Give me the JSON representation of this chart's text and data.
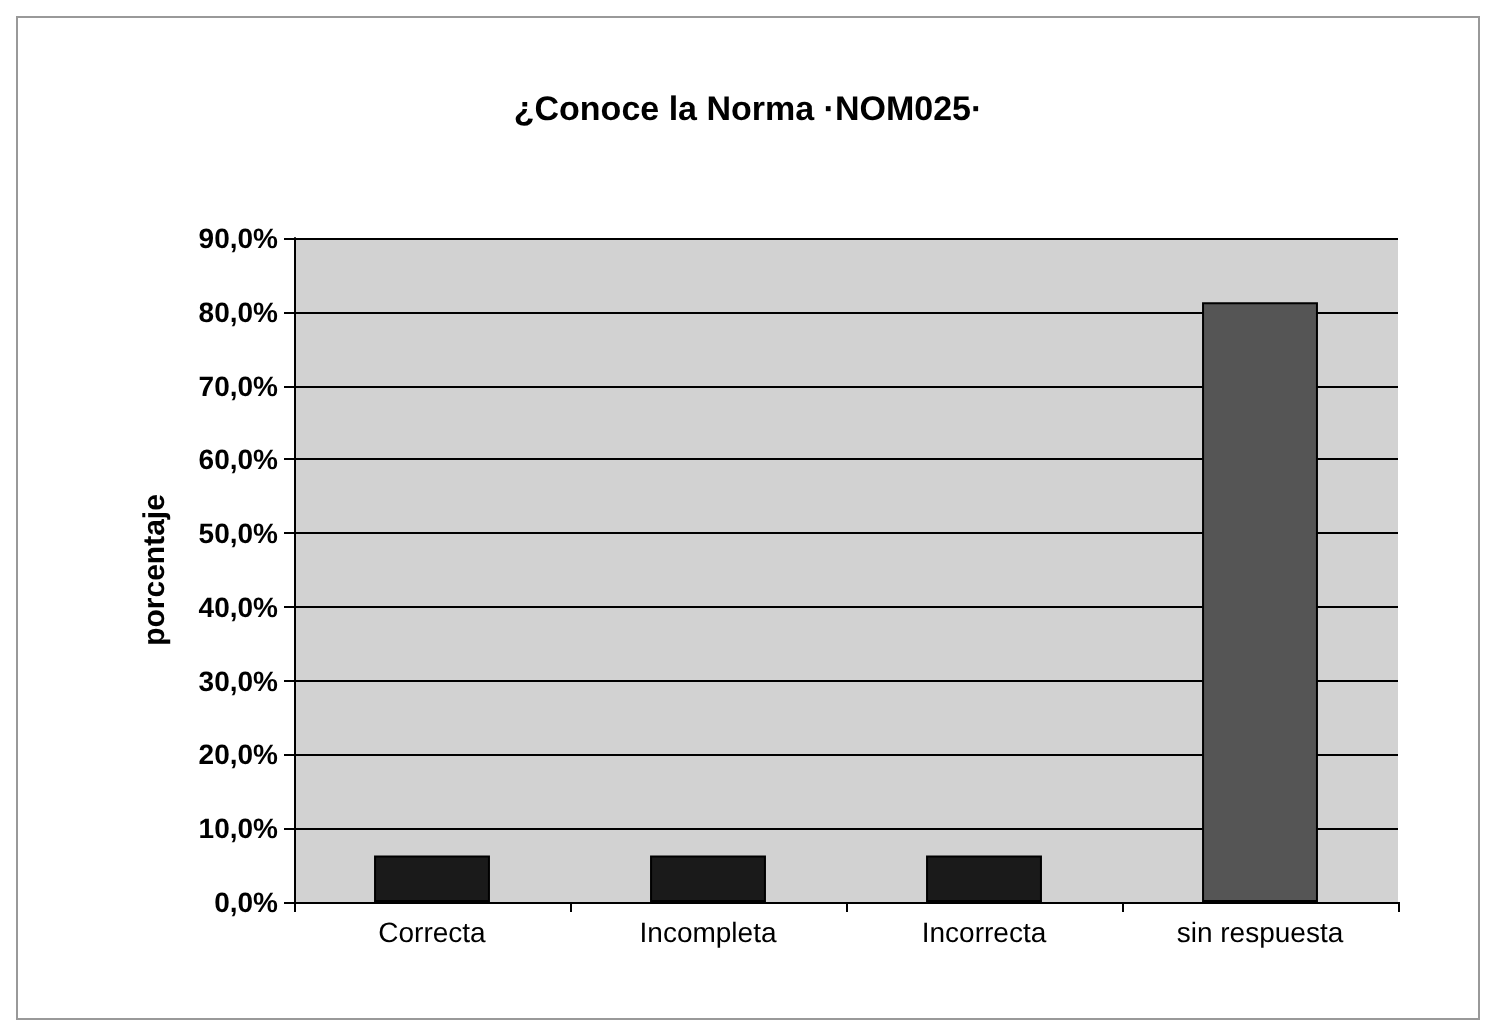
{
  "chart_data": {
    "type": "bar",
    "title": "¿Conoce la Norma ·NOM025·",
    "ylabel": "porcentaje",
    "categories": [
      "Correcta",
      "Incompleta",
      "Incorrecta",
      "sin respuesta"
    ],
    "values": [
      6.3,
      6.3,
      6.3,
      81.3
    ],
    "colors": [
      "#1a1a1a",
      "#1a1a1a",
      "#1a1a1a",
      "#555555"
    ],
    "ylim": [
      0,
      90
    ],
    "yticks": [
      {
        "value": 0,
        "label": "0,0%"
      },
      {
        "value": 10,
        "label": "10,0%"
      },
      {
        "value": 20,
        "label": "20,0%"
      },
      {
        "value": 30,
        "label": "30,0%"
      },
      {
        "value": 40,
        "label": "40,0%"
      },
      {
        "value": 50,
        "label": "50,0%"
      },
      {
        "value": 60,
        "label": "60,0%"
      },
      {
        "value": 70,
        "label": "70,0%"
      },
      {
        "value": 80,
        "label": "80,0%"
      },
      {
        "value": 90,
        "label": "90,0%"
      }
    ],
    "grid": "y"
  }
}
